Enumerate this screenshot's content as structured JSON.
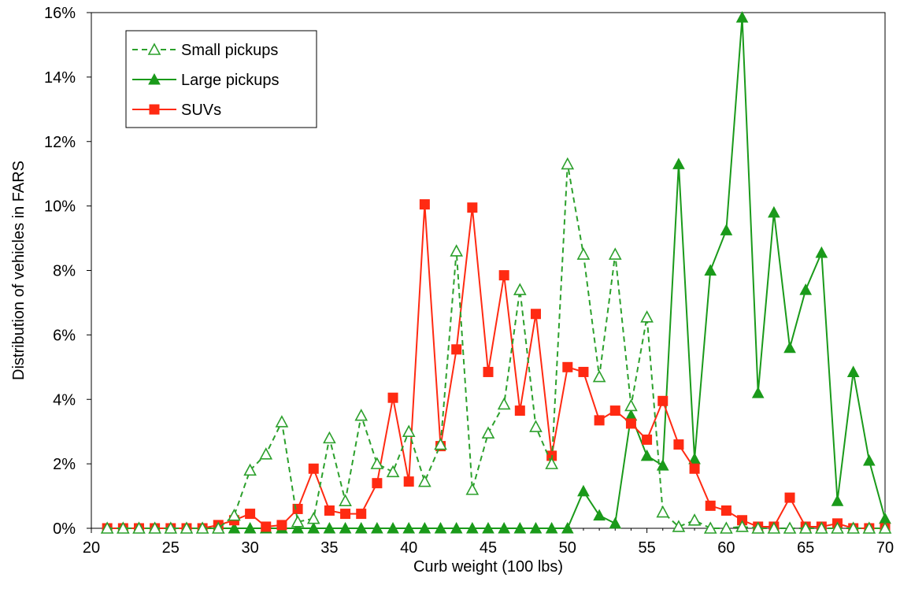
{
  "chart_data": {
    "type": "line",
    "xlabel": "Curb weight (100 lbs)",
    "ylabel": "Distribution of vehicles in FARS",
    "xlim": [
      20,
      70
    ],
    "ylim": [
      0,
      16
    ],
    "x_ticks": [
      "20",
      "25",
      "30",
      "35",
      "40",
      "45",
      "50",
      "55",
      "60",
      "65",
      "70"
    ],
    "y_ticks": [
      "0%",
      "2%",
      "4%",
      "6%",
      "8%",
      "10%",
      "12%",
      "14%",
      "16%"
    ],
    "grid": false,
    "legend_position": "top-left",
    "x": [
      21,
      22,
      23,
      24,
      25,
      26,
      27,
      28,
      29,
      30,
      31,
      32,
      33,
      34,
      35,
      36,
      37,
      38,
      39,
      40,
      41,
      42,
      43,
      44,
      45,
      46,
      47,
      48,
      49,
      50,
      51,
      52,
      53,
      54,
      55,
      56,
      57,
      58,
      59,
      60,
      61,
      62,
      63,
      64,
      65,
      66,
      67,
      68,
      69,
      70
    ],
    "series": [
      {
        "name": "Small pickups",
        "color": "#2ca02c",
        "marker": "open-triangle",
        "line": "dashed",
        "values": [
          0,
          0,
          0,
          0,
          0,
          0,
          0,
          0,
          0.4,
          1.8,
          2.3,
          3.3,
          0.2,
          0.3,
          2.8,
          0.85,
          3.5,
          2.0,
          1.75,
          3.0,
          1.45,
          2.6,
          8.6,
          1.2,
          2.95,
          3.85,
          7.4,
          3.15,
          2.0,
          11.3,
          8.5,
          4.7,
          8.5,
          3.8,
          6.55,
          0.5,
          0.05,
          0.25,
          0,
          0,
          0.05,
          0,
          0,
          0,
          0,
          0,
          0,
          0,
          0,
          0
        ]
      },
      {
        "name": "Large pickups",
        "color": "#1a9a1a",
        "marker": "filled-triangle",
        "line": "solid",
        "values": [
          0,
          0,
          0,
          0,
          0,
          0,
          0,
          0,
          0,
          0,
          0,
          0,
          0,
          0,
          0,
          0,
          0,
          0,
          0,
          0,
          0,
          0,
          0,
          0,
          0,
          0,
          0,
          0,
          0,
          0,
          1.15,
          0.4,
          0.15,
          3.5,
          2.25,
          1.95,
          11.3,
          2.15,
          8.0,
          9.25,
          15.85,
          4.2,
          9.8,
          5.6,
          7.4,
          8.55,
          0.85,
          4.85,
          2.1,
          0.3
        ]
      },
      {
        "name": "SUVs",
        "color": "#ff2a12",
        "marker": "filled-square",
        "line": "solid",
        "values": [
          0,
          0,
          0,
          0,
          0,
          0,
          0,
          0.1,
          0.25,
          0.45,
          0.05,
          0.1,
          0.6,
          1.85,
          0.55,
          0.45,
          0.45,
          1.4,
          4.05,
          1.45,
          10.05,
          2.55,
          5.55,
          9.95,
          4.85,
          7.85,
          3.65,
          6.65,
          2.25,
          5.0,
          4.85,
          3.35,
          3.65,
          3.25,
          2.75,
          3.95,
          2.6,
          1.85,
          0.7,
          0.55,
          0.25,
          0.05,
          0.05,
          0.95,
          0.05,
          0.05,
          0.15,
          0,
          0,
          0
        ]
      }
    ]
  }
}
